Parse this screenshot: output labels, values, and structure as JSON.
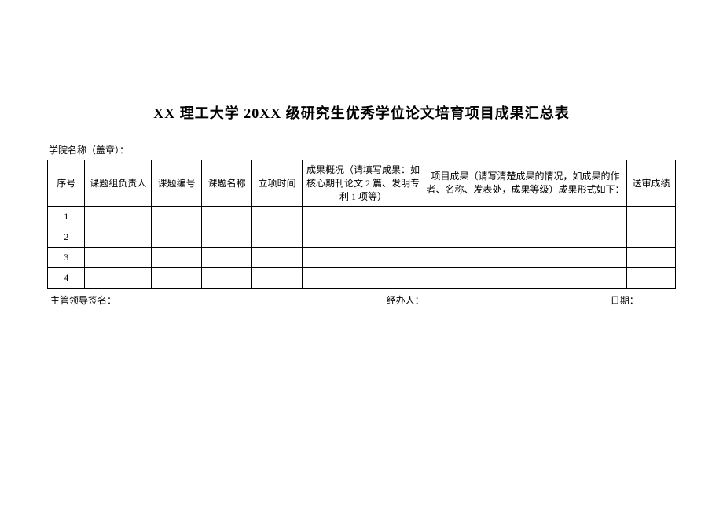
{
  "title": "XX 理工大学 20XX 级研究生优秀学位论文培育项目成果汇总表",
  "subtitle": "学院名称（盖章）：",
  "columns": {
    "seq": "序号",
    "leader": "课题组负责人",
    "code": "课题编号",
    "name": "课题名称",
    "date": "立项时间",
    "summary": "成果概况（请填写成果：如核心期刊论文 2 篇、发明专利 1 项等）",
    "result": "项目成果（请写清楚成果的情况，如成果的作者、名称、发表处，成果等级）成果形式如下：",
    "score": "送审成绩"
  },
  "rows": [
    {
      "seq": "1",
      "leader": "",
      "code": "",
      "name": "",
      "date": "",
      "summary": "",
      "result": "",
      "score": ""
    },
    {
      "seq": "2",
      "leader": "",
      "code": "",
      "name": "",
      "date": "",
      "summary": "",
      "result": "",
      "score": ""
    },
    {
      "seq": "3",
      "leader": "",
      "code": "",
      "name": "",
      "date": "",
      "summary": "",
      "result": "",
      "score": ""
    },
    {
      "seq": "4",
      "leader": "",
      "code": "",
      "name": "",
      "date": "",
      "summary": "",
      "result": "",
      "score": ""
    }
  ],
  "footer": {
    "sign": "主管领导签名：",
    "handler": "经办人：",
    "date": "日期："
  },
  "style": {
    "page_bg": "#ffffff",
    "text_color": "#000000",
    "border_color": "#000000",
    "title_fontsize": 18,
    "body_fontsize": 12
  }
}
